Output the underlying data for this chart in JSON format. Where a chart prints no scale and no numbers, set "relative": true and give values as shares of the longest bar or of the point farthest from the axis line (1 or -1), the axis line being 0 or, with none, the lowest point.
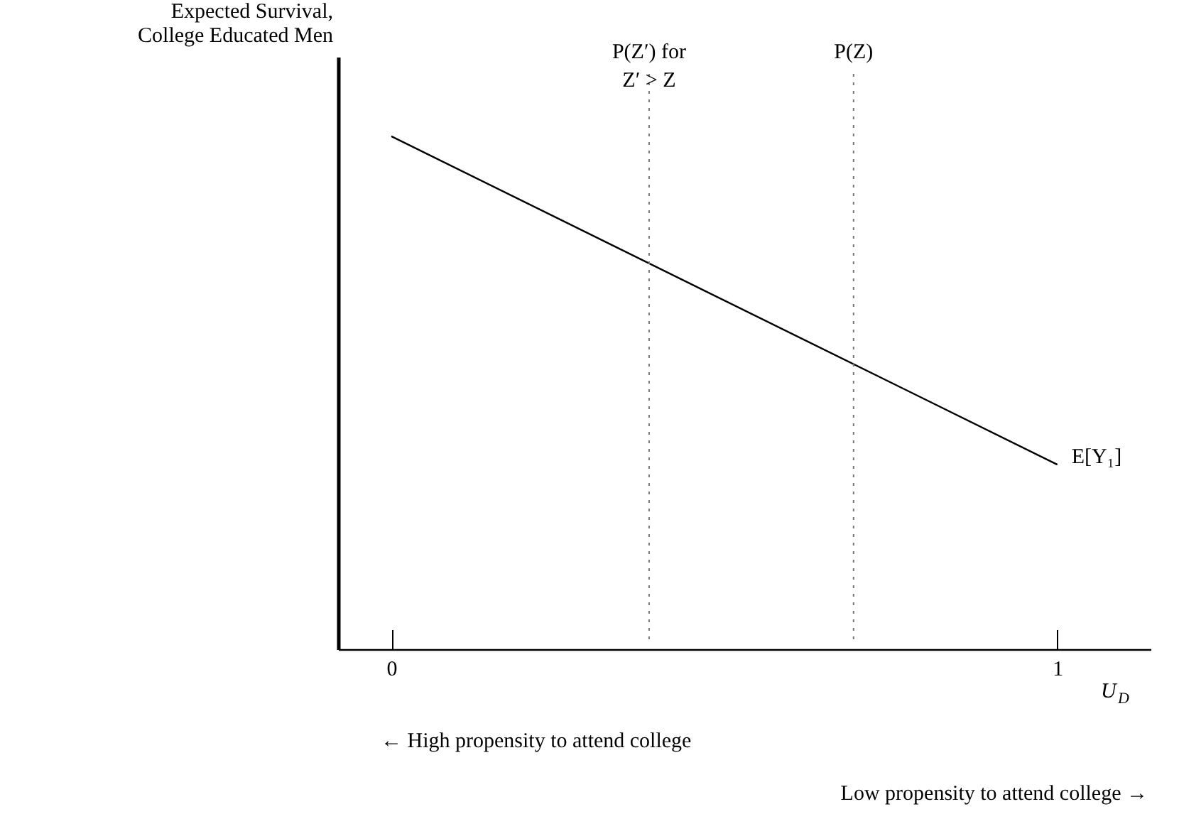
{
  "chart_data": {
    "type": "line",
    "relative": true,
    "ylabel": "Expected Survival, College Educated Men",
    "xlabel": "U$_{D}$",
    "x": [
      0,
      1
    ],
    "xlim": [
      -0.08,
      1.14
    ],
    "xticks": [
      0,
      1
    ],
    "series": [
      {
        "name": "E[Y₁]",
        "color": "#000000",
        "values": [
          1,
          0.36
        ]
      }
    ],
    "ref_lines": [
      {
        "axis": "x",
        "value": 0.387,
        "label": "P(Z′) for Z′ > Z",
        "color": "#777777",
        "line_style": "dotted"
      },
      {
        "axis": "x",
        "value": 0.694,
        "label": "P(Z)",
        "color": "#777777",
        "line_style": "dotted"
      }
    ],
    "annotations": [
      "← High propensity to attend college",
      "Low propensity to attend college →"
    ]
  }
}
